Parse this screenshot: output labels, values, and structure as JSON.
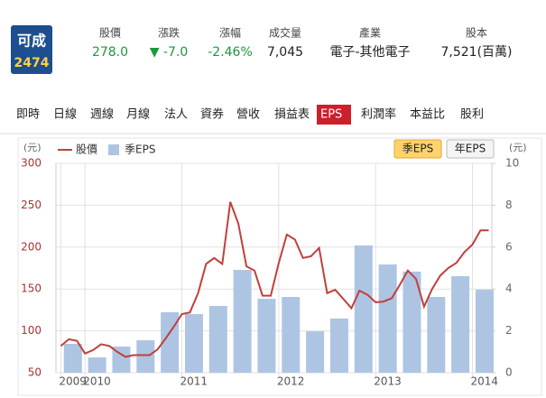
{
  "header": {
    "name": "可成",
    "code": "2474",
    "fields": [
      {
        "label": "股價",
        "value": "278.0"
      },
      {
        "label": "漲跌",
        "value": "▼ -7.0"
      },
      {
        "label": "漲幅",
        "value": "-2.46%"
      },
      {
        "label": "成交量",
        "value": "7,045"
      },
      {
        "label": "產業",
        "value": "電子-其他電子"
      },
      {
        "label": "股本",
        "value": "7,521(百萬)"
      }
    ]
  },
  "tabs": [
    {
      "label": "即時",
      "active": false
    },
    {
      "label": "日線",
      "active": false
    },
    {
      "label": "週線",
      "active": false
    },
    {
      "label": "月線",
      "active": false
    },
    {
      "label": "法人",
      "active": false
    },
    {
      "label": "資券",
      "active": false
    },
    {
      "label": "營收",
      "active": false
    },
    {
      "label": "損益表",
      "active": false
    },
    {
      "label": "EPS",
      "active": true
    },
    {
      "label": "利潤率",
      "active": false
    },
    {
      "label": "本益比",
      "active": false
    },
    {
      "label": "股利",
      "active": false
    }
  ],
  "buttons": [
    {
      "label": "季EPS",
      "active": true
    },
    {
      "label": "年EPS",
      "active": false
    }
  ],
  "chart_data": {
    "type": "bar-line",
    "y_label": "(元)",
    "y2_label": "(元)",
    "xlim": [
      2009.7,
      2014.2
    ],
    "xticks": [
      {
        "value": 2009.75,
        "label": "2009"
      },
      2010,
      2011,
      2012,
      2013,
      2014
    ],
    "ylim": [
      50,
      300
    ],
    "yticks": [
      50,
      100,
      150,
      200,
      250,
      300
    ],
    "y2lim": [
      0,
      10
    ],
    "y2ticks": [
      0,
      2,
      4,
      6,
      8,
      10
    ],
    "grid": true,
    "series": [
      {
        "name": "股價",
        "type": "line",
        "color": "#c0403c",
        "x": [
          2009.75,
          2009.833,
          2009.917,
          2010.0,
          2010.083,
          2010.167,
          2010.25,
          2010.333,
          2010.417,
          2010.5,
          2010.583,
          2010.667,
          2010.75,
          2010.833,
          2010.917,
          2011.0,
          2011.083,
          2011.167,
          2011.25,
          2011.333,
          2011.417,
          2011.5,
          2011.583,
          2011.667,
          2011.75,
          2011.833,
          2011.917,
          2012.0,
          2012.083,
          2012.167,
          2012.25,
          2012.333,
          2012.417,
          2012.5,
          2012.583,
          2012.667,
          2012.75,
          2012.833,
          2012.917,
          2013.0,
          2013.083,
          2013.167,
          2013.25,
          2013.333,
          2013.417,
          2013.5,
          2013.583,
          2013.667,
          2013.75,
          2013.833,
          2013.917,
          2014.0,
          2014.083,
          2014.167
        ],
        "values": [
          82,
          90,
          88,
          73,
          77,
          84,
          82,
          75,
          69,
          71,
          71,
          71,
          78,
          91,
          105,
          120,
          122,
          145,
          180,
          187,
          180,
          254,
          228,
          177,
          172,
          142,
          142,
          181,
          215,
          209,
          187,
          189,
          199,
          145,
          149,
          138,
          127,
          148,
          143,
          134,
          135,
          139,
          155,
          172,
          162,
          129,
          150,
          166,
          175,
          181,
          194,
          203,
          220,
          220
        ]
      },
      {
        "name": "季EPS",
        "type": "bar",
        "axis": "y2",
        "color": "#adc5e3",
        "x": [
          2009.875,
          2010.125,
          2010.375,
          2010.625,
          2010.875,
          2011.125,
          2011.375,
          2011.625,
          2011.875,
          2012.125,
          2012.375,
          2012.625,
          2012.875,
          2013.125,
          2013.375,
          2013.625,
          2013.875,
          2014.125
        ],
        "values": [
          1.38,
          0.73,
          1.25,
          1.55,
          2.89,
          2.8,
          3.19,
          4.91,
          3.53,
          3.62,
          1.98,
          2.59,
          6.08,
          5.17,
          4.83,
          3.62,
          4.61,
          3.97
        ]
      }
    ]
  }
}
